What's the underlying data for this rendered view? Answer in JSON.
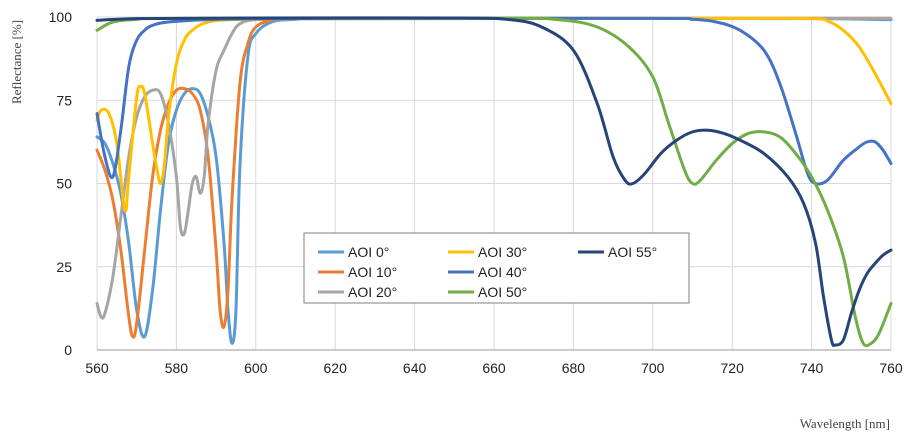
{
  "chart_data": {
    "type": "line",
    "title": "",
    "xlabel": "Wavelength [nm]",
    "ylabel": "Reflectance [%]",
    "xlim": [
      560,
      760
    ],
    "ylim": [
      0,
      100
    ],
    "x_ticks": [
      560,
      580,
      600,
      620,
      640,
      660,
      680,
      700,
      720,
      740,
      760
    ],
    "y_ticks": [
      0,
      25,
      50,
      75,
      100
    ],
    "grid": true,
    "legend_position": "center-inside",
    "series": [
      {
        "name": "AOI 0°",
        "color": "#5b9bd5",
        "points": [
          [
            560,
            64
          ],
          [
            562,
            62
          ],
          [
            564,
            56
          ],
          [
            566,
            47
          ],
          [
            568,
            32
          ],
          [
            570,
            12
          ],
          [
            572,
            4
          ],
          [
            574,
            18
          ],
          [
            576,
            42
          ],
          [
            578,
            62
          ],
          [
            580,
            72
          ],
          [
            582,
            77
          ],
          [
            584,
            78.5
          ],
          [
            586,
            77
          ],
          [
            588,
            70
          ],
          [
            590,
            58
          ],
          [
            592,
            32
          ],
          [
            593,
            12
          ],
          [
            594,
            2
          ],
          [
            595,
            12
          ],
          [
            596,
            55
          ],
          [
            598,
            88
          ],
          [
            600,
            95
          ],
          [
            604,
            98.5
          ],
          [
            610,
            99.3
          ],
          [
            620,
            99.5
          ],
          [
            700,
            99.6
          ],
          [
            740,
            99.5
          ],
          [
            760,
            99.2
          ]
        ]
      },
      {
        "name": "AOI 10°",
        "color": "#ed7d31",
        "points": [
          [
            560,
            60
          ],
          [
            562,
            54
          ],
          [
            564,
            45
          ],
          [
            566,
            30
          ],
          [
            568,
            10
          ],
          [
            569,
            4
          ],
          [
            570,
            8
          ],
          [
            572,
            30
          ],
          [
            574,
            52
          ],
          [
            576,
            66
          ],
          [
            578,
            74
          ],
          [
            580,
            78
          ],
          [
            582,
            78.5
          ],
          [
            584,
            77
          ],
          [
            586,
            72
          ],
          [
            588,
            58
          ],
          [
            590,
            30
          ],
          [
            591,
            12
          ],
          [
            592,
            7
          ],
          [
            593,
            18
          ],
          [
            594,
            45
          ],
          [
            596,
            80
          ],
          [
            598,
            92
          ],
          [
            600,
            97
          ],
          [
            604,
            99
          ],
          [
            610,
            99.5
          ],
          [
            760,
            99.6
          ]
        ]
      },
      {
        "name": "AOI 20°",
        "color": "#a5a5a5",
        "points": [
          [
            560,
            14
          ],
          [
            561,
            10
          ],
          [
            562,
            11
          ],
          [
            564,
            22
          ],
          [
            566,
            40
          ],
          [
            568,
            58
          ],
          [
            570,
            70
          ],
          [
            572,
            76
          ],
          [
            574,
            78
          ],
          [
            576,
            77
          ],
          [
            578,
            68
          ],
          [
            580,
            52
          ],
          [
            581,
            37
          ],
          [
            582,
            35
          ],
          [
            583,
            42
          ],
          [
            584,
            50
          ],
          [
            585,
            52
          ],
          [
            586,
            47
          ],
          [
            587,
            52
          ],
          [
            588,
            68
          ],
          [
            590,
            84
          ],
          [
            592,
            90
          ],
          [
            594,
            95
          ],
          [
            596,
            98
          ],
          [
            600,
            99.2
          ],
          [
            610,
            99.5
          ],
          [
            760,
            99.6
          ]
        ]
      },
      {
        "name": "AOI 30°",
        "color": "#ffc000",
        "points": [
          [
            560,
            69
          ],
          [
            561,
            72
          ],
          [
            563,
            71
          ],
          [
            565,
            62
          ],
          [
            567,
            42
          ],
          [
            568,
            52
          ],
          [
            570,
            76
          ],
          [
            571,
            79
          ],
          [
            572,
            77
          ],
          [
            574,
            62
          ],
          [
            575,
            55
          ],
          [
            576,
            50
          ],
          [
            577,
            56
          ],
          [
            578,
            70
          ],
          [
            580,
            86
          ],
          [
            582,
            93
          ],
          [
            584,
            96
          ],
          [
            588,
            98.5
          ],
          [
            596,
            99.3
          ],
          [
            620,
            99.6
          ],
          [
            720,
            99.6
          ],
          [
            740,
            99.5
          ],
          [
            744,
            98.8
          ],
          [
            748,
            96
          ],
          [
            752,
            91
          ],
          [
            756,
            83
          ],
          [
            760,
            74
          ]
        ]
      },
      {
        "name": "AOI 40°",
        "color": "#4472c4",
        "points": [
          [
            560,
            71
          ],
          [
            562,
            58
          ],
          [
            564,
            52
          ],
          [
            566,
            66
          ],
          [
            568,
            85
          ],
          [
            570,
            93
          ],
          [
            572,
            96
          ],
          [
            574,
            97.5
          ],
          [
            578,
            98.5
          ],
          [
            590,
            99.3
          ],
          [
            620,
            99.6
          ],
          [
            700,
            99.6
          ],
          [
            710,
            99.3
          ],
          [
            716,
            98.5
          ],
          [
            722,
            96
          ],
          [
            728,
            90
          ],
          [
            732,
            80
          ],
          [
            736,
            65
          ],
          [
            739,
            53
          ],
          [
            741,
            50
          ],
          [
            744,
            51
          ],
          [
            748,
            57
          ],
          [
            752,
            61
          ],
          [
            754,
            62.5
          ],
          [
            756,
            62.5
          ],
          [
            758,
            60
          ],
          [
            760,
            56
          ]
        ]
      },
      {
        "name": "AOI 50°",
        "color": "#70ad47",
        "points": [
          [
            560,
            96
          ],
          [
            564,
            98.5
          ],
          [
            570,
            99.3
          ],
          [
            580,
            99.6
          ],
          [
            660,
            99.7
          ],
          [
            676,
            99.2
          ],
          [
            686,
            97
          ],
          [
            694,
            91
          ],
          [
            700,
            82
          ],
          [
            704,
            68
          ],
          [
            708,
            54
          ],
          [
            710,
            50
          ],
          [
            712,
            51
          ],
          [
            716,
            57
          ],
          [
            720,
            62
          ],
          [
            724,
            65
          ],
          [
            728,
            65.5
          ],
          [
            732,
            64
          ],
          [
            736,
            59
          ],
          [
            740,
            52
          ],
          [
            744,
            42
          ],
          [
            748,
            28
          ],
          [
            751,
            10
          ],
          [
            753,
            2
          ],
          [
            755,
            2
          ],
          [
            757,
            5
          ],
          [
            760,
            14
          ]
        ]
      },
      {
        "name": "AOI 55°",
        "color": "#264478",
        "points": [
          [
            560,
            99
          ],
          [
            570,
            99.5
          ],
          [
            600,
            99.7
          ],
          [
            650,
            99.7
          ],
          [
            664,
            99.2
          ],
          [
            672,
            97
          ],
          [
            680,
            90
          ],
          [
            686,
            74
          ],
          [
            690,
            58
          ],
          [
            693,
            51
          ],
          [
            695,
            50
          ],
          [
            698,
            53
          ],
          [
            702,
            59
          ],
          [
            706,
            63
          ],
          [
            710,
            65.5
          ],
          [
            714,
            66
          ],
          [
            718,
            65
          ],
          [
            722,
            63
          ],
          [
            728,
            59
          ],
          [
            734,
            52
          ],
          [
            738,
            44
          ],
          [
            741,
            32
          ],
          [
            743,
            16
          ],
          [
            745,
            3
          ],
          [
            746,
            1.5
          ],
          [
            748,
            3
          ],
          [
            750,
            11
          ],
          [
            752,
            18
          ],
          [
            754,
            23
          ],
          [
            756,
            26
          ],
          [
            758,
            28.5
          ],
          [
            760,
            30
          ]
        ]
      }
    ]
  }
}
